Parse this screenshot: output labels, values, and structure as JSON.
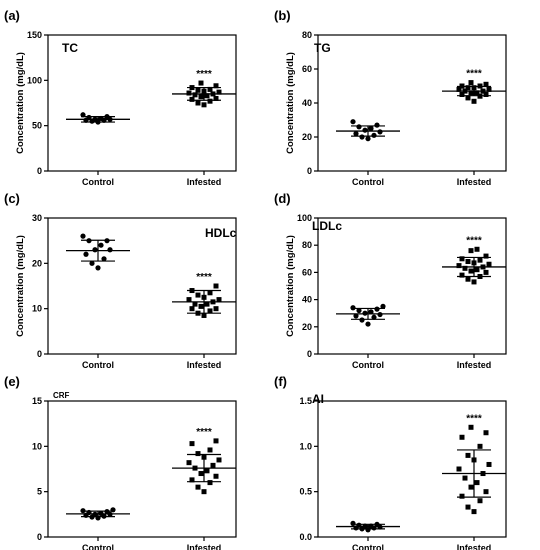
{
  "chart_data": [
    {
      "type": "scatter",
      "panel_tag": "(a)",
      "title": "TC",
      "ylabel": "Concentration (mg/dL)",
      "ylim": [
        0,
        150
      ],
      "yticks": [
        "0",
        "50",
        "100",
        "150"
      ],
      "categories": [
        "Control",
        "Infested"
      ],
      "significance": "****",
      "groups": [
        {
          "name": "Control",
          "marker": "circle",
          "mean": 57,
          "sd": 3,
          "values": [
            54,
            55,
            56,
            56,
            57,
            57,
            58,
            59,
            60,
            62
          ]
        },
        {
          "name": "Infested",
          "marker": "square",
          "mean": 85,
          "sd": 7,
          "values": [
            73,
            75,
            77,
            79,
            80,
            82,
            83,
            84,
            85,
            86,
            87,
            88,
            89,
            90,
            92,
            94,
            97
          ]
        }
      ]
    },
    {
      "type": "scatter",
      "panel_tag": "(b)",
      "title": "TG",
      "ylabel": "Concentration (mg/dL)",
      "ylim": [
        0,
        80
      ],
      "yticks": [
        "0",
        "20",
        "40",
        "60",
        "80"
      ],
      "categories": [
        "Control",
        "Infested"
      ],
      "significance": "****",
      "groups": [
        {
          "name": "Control",
          "marker": "circle",
          "mean": 23.5,
          "sd": 3,
          "values": [
            19,
            20,
            21,
            22,
            23,
            24,
            25,
            26,
            27,
            29
          ]
        },
        {
          "name": "Infested",
          "marker": "square",
          "mean": 47,
          "sd": 2.7,
          "values": [
            41,
            43,
            44,
            45,
            45,
            46,
            46,
            47,
            47,
            48,
            48,
            49,
            49,
            50,
            50,
            51,
            52
          ]
        }
      ]
    },
    {
      "type": "scatter",
      "panel_tag": "(c)",
      "title": "HDLc",
      "ylabel": "Concentration (mg/dL)",
      "ylim": [
        0,
        30
      ],
      "yticks": [
        "0",
        "10",
        "20",
        "30"
      ],
      "categories": [
        "Control",
        "Infested"
      ],
      "significance": "****",
      "groups": [
        {
          "name": "Control",
          "marker": "circle",
          "mean": 22.8,
          "sd": 2.3,
          "values": [
            19,
            20,
            21,
            22,
            23,
            23,
            24,
            25,
            25,
            26
          ]
        },
        {
          "name": "Infested",
          "marker": "square",
          "mean": 11.5,
          "sd": 2.5,
          "values": [
            8.5,
            9,
            9.5,
            10,
            10,
            10.5,
            11,
            11,
            11.5,
            12,
            12,
            12.5,
            13,
            13.5,
            14,
            15
          ]
        }
      ]
    },
    {
      "type": "scatter",
      "panel_tag": "(d)",
      "title": "LDLc",
      "ylabel": "Concentration (mg/dL)",
      "ylim": [
        0,
        100
      ],
      "yticks": [
        "0",
        "20",
        "40",
        "60",
        "80",
        "100"
      ],
      "categories": [
        "Control",
        "Infested"
      ],
      "significance": "****",
      "groups": [
        {
          "name": "Control",
          "marker": "circle",
          "mean": 29.5,
          "sd": 4,
          "values": [
            22,
            25,
            27,
            28,
            29,
            30,
            31,
            32,
            33,
            34,
            35
          ]
        },
        {
          "name": "Infested",
          "marker": "square",
          "mean": 64,
          "sd": 7,
          "values": [
            53,
            55,
            57,
            58,
            60,
            61,
            62,
            63,
            64,
            65,
            66,
            67,
            68,
            69,
            70,
            72,
            76,
            77
          ]
        }
      ]
    },
    {
      "type": "scatter",
      "panel_tag": "(e)",
      "title": "CRF",
      "ylabel": "",
      "ylim": [
        0,
        15
      ],
      "yticks": [
        "0",
        "5",
        "10",
        "15"
      ],
      "categories": [
        "Control",
        "Infested"
      ],
      "significance": "****",
      "groups": [
        {
          "name": "Control",
          "marker": "circle",
          "mean": 2.55,
          "sd": 0.3,
          "values": [
            2.1,
            2.2,
            2.3,
            2.4,
            2.5,
            2.5,
            2.6,
            2.7,
            2.8,
            2.9,
            3.0
          ]
        },
        {
          "name": "Infested",
          "marker": "square",
          "mean": 7.6,
          "sd": 1.5,
          "values": [
            5.0,
            5.5,
            6.0,
            6.3,
            6.7,
            7.0,
            7.3,
            7.6,
            7.9,
            8.2,
            8.5,
            8.8,
            9.2,
            9.6,
            10.3,
            10.6
          ]
        }
      ]
    },
    {
      "type": "scatter",
      "panel_tag": "(f)",
      "title": "AI",
      "ylabel": "",
      "ylim": [
        0,
        1.5
      ],
      "yticks": [
        "0.0",
        "0.5",
        "1.0",
        "1.5"
      ],
      "categories": [
        "Control",
        "Infested"
      ],
      "significance": "****",
      "groups": [
        {
          "name": "Control",
          "marker": "circle",
          "mean": 0.115,
          "sd": 0.025,
          "values": [
            0.08,
            0.09,
            0.1,
            0.1,
            0.11,
            0.12,
            0.12,
            0.13,
            0.14,
            0.15
          ]
        },
        {
          "name": "Infested",
          "marker": "square",
          "mean": 0.7,
          "sd": 0.26,
          "values": [
            0.28,
            0.33,
            0.4,
            0.45,
            0.5,
            0.55,
            0.6,
            0.65,
            0.7,
            0.75,
            0.8,
            0.85,
            0.9,
            1.0,
            1.1,
            1.15,
            1.21
          ]
        }
      ]
    }
  ]
}
